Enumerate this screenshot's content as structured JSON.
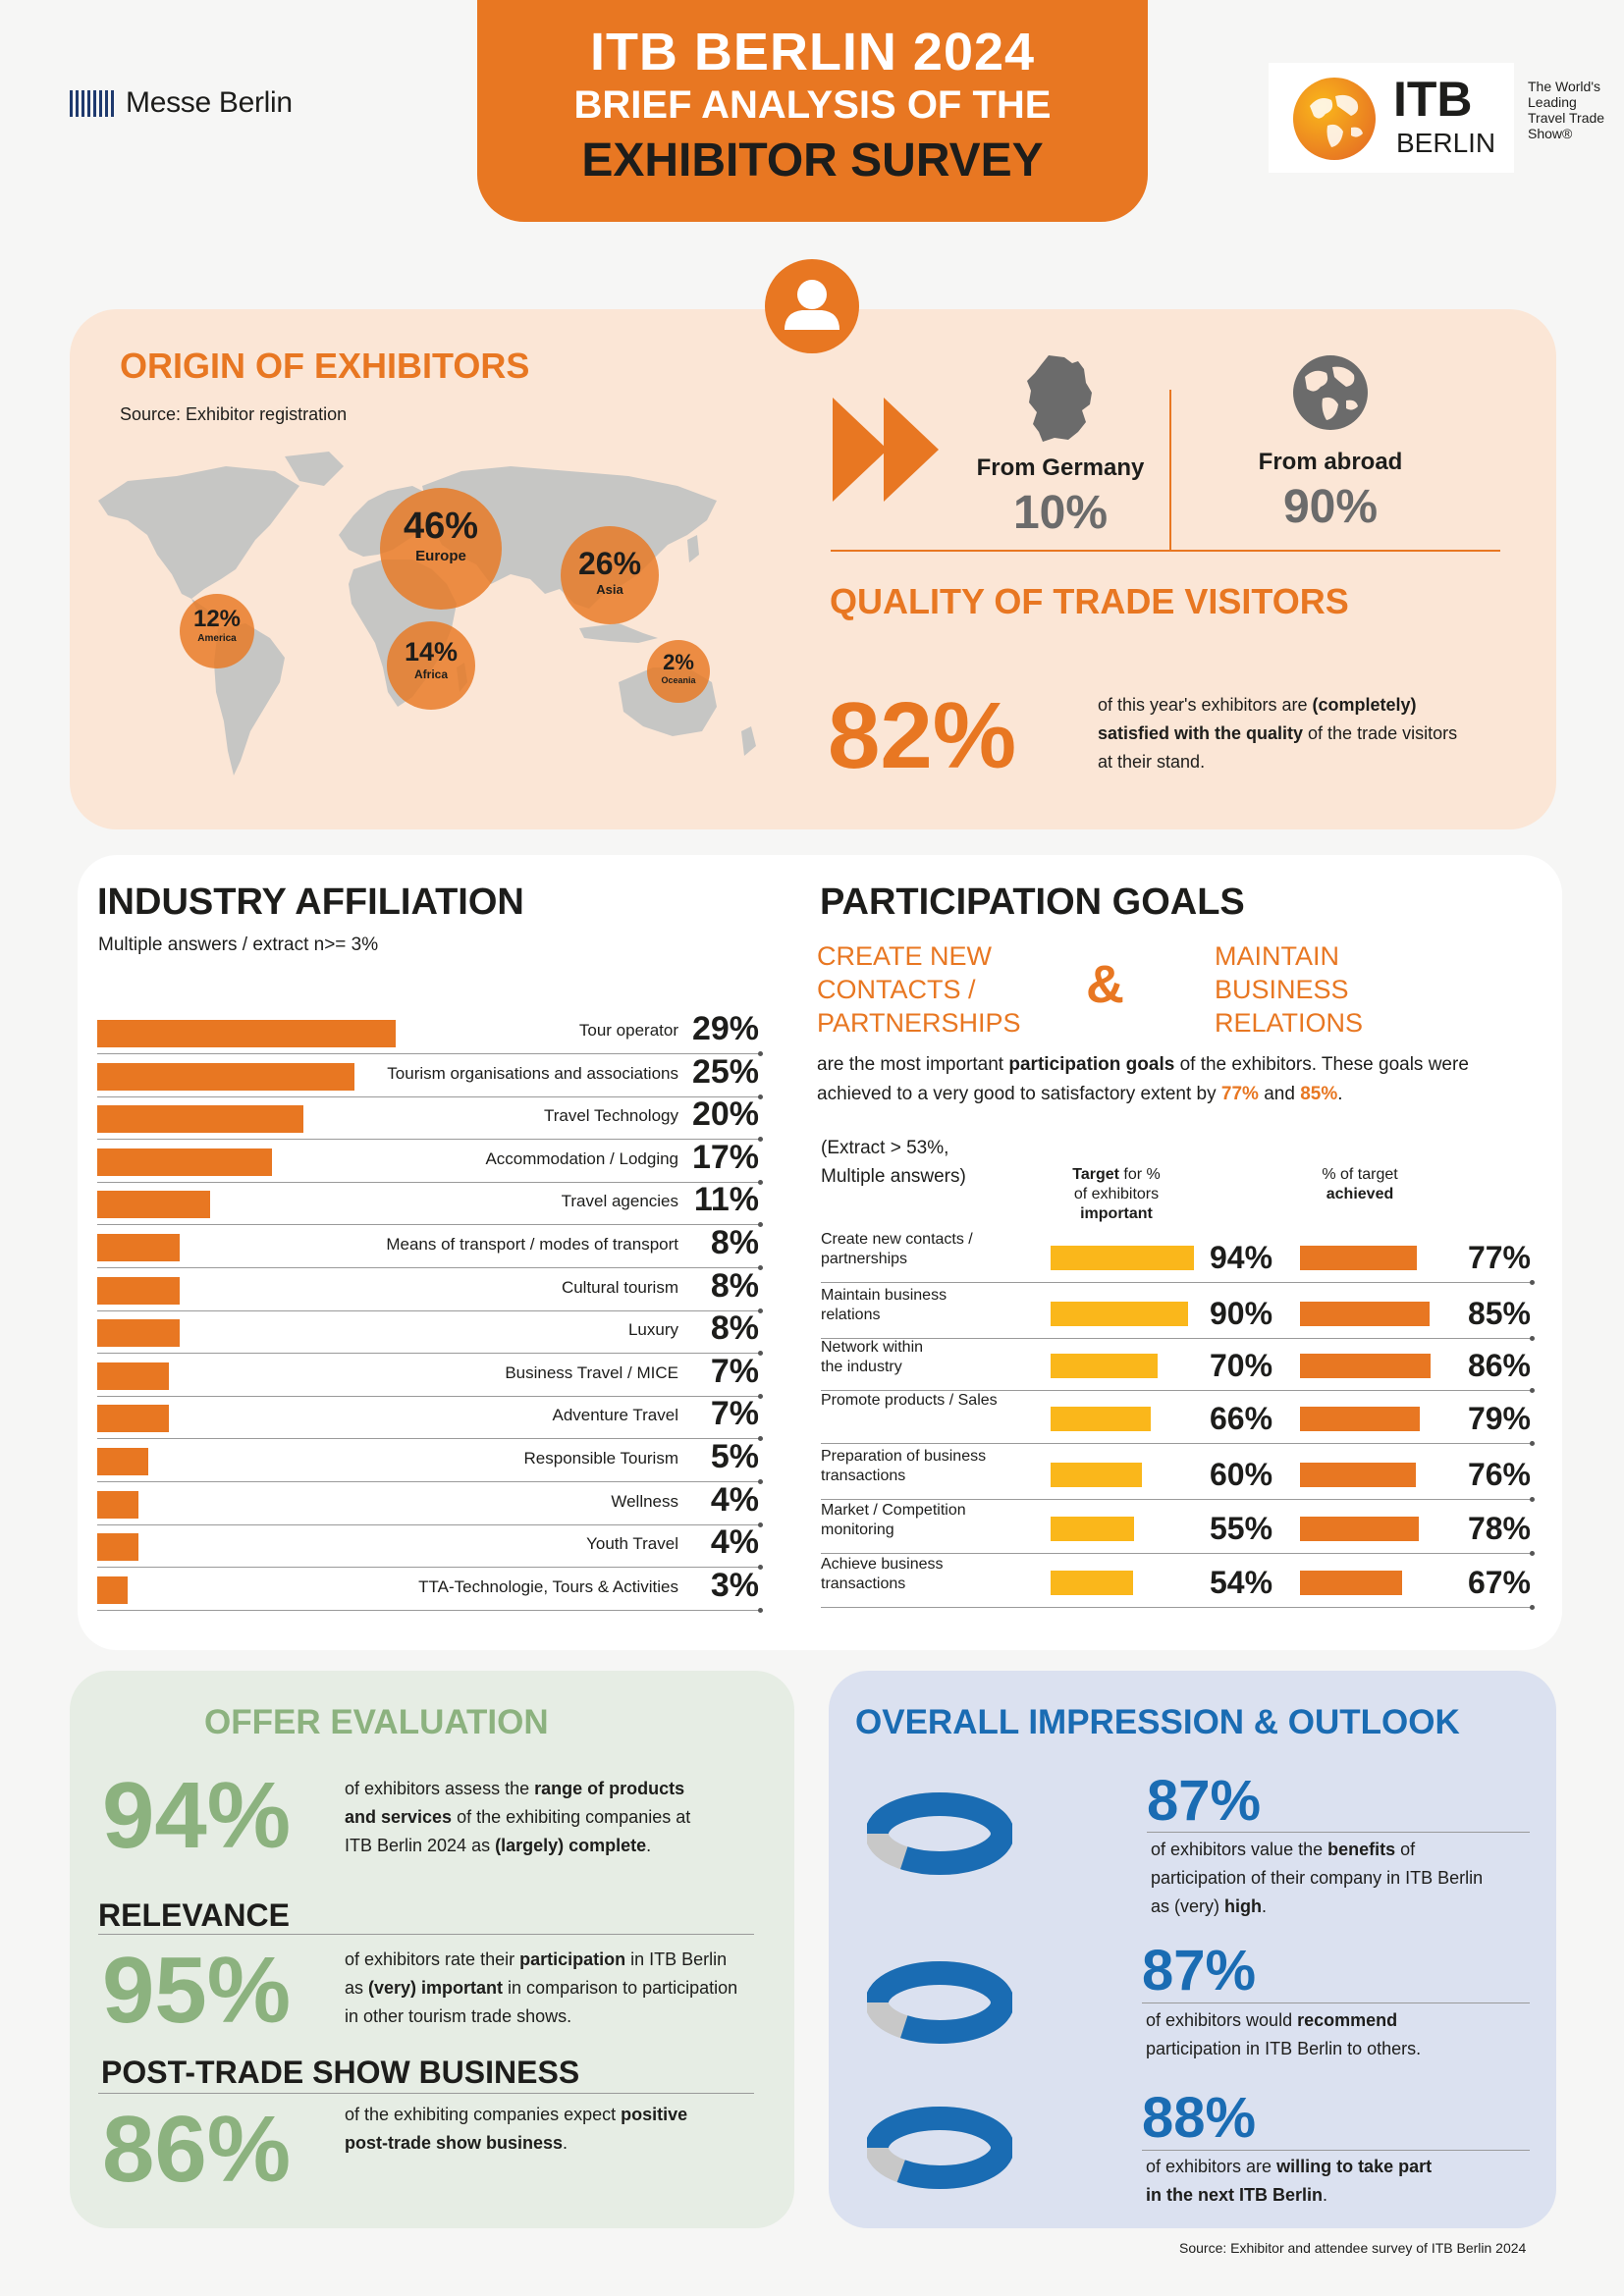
{
  "header": {
    "messe_logo_text": "Messe Berlin",
    "title_line1": "ITB BERLIN 2024",
    "title_line2": "BRIEF ANALYSIS OF THE",
    "title_line3": "EXHIBITOR SURVEY",
    "itb_logo_main": "ITB",
    "itb_logo_sub": "BERLIN",
    "tagline": [
      "The World's",
      "Leading",
      "Travel Trade",
      "Show®"
    ]
  },
  "origin": {
    "title": "ORIGIN OF EXHIBITORS",
    "source": "Source: Exhibitor registration",
    "regions": [
      {
        "pct": "46%",
        "name": "Europe"
      },
      {
        "pct": "26%",
        "name": "Asia"
      },
      {
        "pct": "12%",
        "name": "America"
      },
      {
        "pct": "14%",
        "name": "Africa"
      },
      {
        "pct": "2%",
        "name": "Oceania"
      }
    ],
    "germany_label": "From Germany",
    "germany_value": "10%",
    "abroad_label": "From abroad",
    "abroad_value": "90%"
  },
  "quality": {
    "title": "QUALITY OF TRADE VISITORS",
    "value": "82%",
    "text_1": "of this year's exhibitors are ",
    "text_bold_1": "(completely)",
    "text_bold_2": "satisfied with the quality",
    "text_2": " of the trade visitors",
    "text_3": "at their stand."
  },
  "industry": {
    "title": "INDUSTRY AFFILIATION",
    "subtitle": "Multiple answers / extract n>= 3%",
    "rows": [
      {
        "label": "Tour operator",
        "value": 29,
        "display": "29%"
      },
      {
        "label": "Tourism organisations and associations",
        "value": 25,
        "display": "25%"
      },
      {
        "label": "Travel Technology",
        "value": 20,
        "display": "20%"
      },
      {
        "label": "Accommodation / Lodging",
        "value": 17,
        "display": "17%"
      },
      {
        "label": "Travel agencies",
        "value": 11,
        "display": "11%"
      },
      {
        "label": "Means of transport / modes of transport",
        "value": 8,
        "display": "8%"
      },
      {
        "label": "Cultural tourism",
        "value": 8,
        "display": "8%"
      },
      {
        "label": "Luxury",
        "value": 8,
        "display": "8%"
      },
      {
        "label": "Business Travel / MICE",
        "value": 7,
        "display": "7%"
      },
      {
        "label": "Adventure Travel",
        "value": 7,
        "display": "7%"
      },
      {
        "label": "Responsible Tourism",
        "value": 5,
        "display": "5%"
      },
      {
        "label": "Wellness",
        "value": 4,
        "display": "4%"
      },
      {
        "label": "Youth Travel",
        "value": 4,
        "display": "4%"
      },
      {
        "label": "TTA-Technologie, Tours & Activities",
        "value": 3,
        "display": "3%"
      }
    ]
  },
  "goals": {
    "title": "PARTICIPATION GOALS",
    "goal_a": [
      "CREATE NEW",
      "CONTACTS /",
      "PARTNERSHIPS"
    ],
    "amp": "&",
    "goal_b": [
      "MAINTAIN",
      "BUSINESS",
      "RELATIONS"
    ],
    "text_1": "are the most important ",
    "text_bold": "participation goals",
    "text_2": " of the exhibitors. These goals were",
    "text_3": "achieved to a very good to satisfactory extent by ",
    "pct_a": "77%",
    "text_and": " and ",
    "pct_b": "85%",
    "text_end": ".",
    "note_1": "(Extract > 53%,",
    "note_2": "Multiple answers)",
    "col1_bold": "Target",
    "col1_rest": " for %",
    "col1_line2": "of exhibitors",
    "col1_line3": "important",
    "col2_line1": "% of target",
    "col2_line2": "achieved",
    "rows": [
      {
        "label": [
          "Create new contacts /",
          "partnerships"
        ],
        "target": 94,
        "target_display": "94%",
        "achieved": 77,
        "achieved_display": "77%"
      },
      {
        "label": [
          "Maintain business",
          "relations"
        ],
        "target": 90,
        "target_display": "90%",
        "achieved": 85,
        "achieved_display": "85%"
      },
      {
        "label": [
          "Network within",
          "the industry"
        ],
        "target": 70,
        "target_display": "70%",
        "achieved": 86,
        "achieved_display": "86%"
      },
      {
        "label": [
          "Promote products / Sales",
          ""
        ],
        "target": 66,
        "target_display": "66%",
        "achieved": 79,
        "achieved_display": "79%"
      },
      {
        "label": [
          "Preparation of business",
          "transactions"
        ],
        "target": 60,
        "target_display": "60%",
        "achieved": 76,
        "achieved_display": "76%"
      },
      {
        "label": [
          "Market / Competition",
          "monitoring"
        ],
        "target": 55,
        "target_display": "55%",
        "achieved": 78,
        "achieved_display": "78%"
      },
      {
        "label": [
          "Achieve business",
          "transactions"
        ],
        "target": 54,
        "target_display": "54%",
        "achieved": 67,
        "achieved_display": "67%"
      }
    ]
  },
  "offer": {
    "title": "OFFER EVALUATION",
    "value": "94%",
    "t1": "of exhibitors assess the ",
    "t1b": "range of products",
    "t2b": "and services",
    "t2": " of the exhibiting companies at",
    "t3": "ITB Berlin 2024 as ",
    "t3b": "(largely) complete",
    "t3e": ".",
    "relevance_title": "RELEVANCE",
    "relevance_value": "95%",
    "r1": "of exhibitors rate their ",
    "r1b": "participation",
    "r1e": " in ITB Berlin",
    "r2": "as ",
    "r2b": "(very) important",
    "r2e": " in comparison to participation",
    "r3": "in other tourism trade shows.",
    "post_title": "POST-TRADE SHOW BUSINESS",
    "post_value": "86%",
    "p1": "of the exhibiting companies expect ",
    "p1b": "positive",
    "p2b": "post-trade show business",
    "p2e": "."
  },
  "overall": {
    "title": "OVERALL IMPRESSION & OUTLOOK",
    "items": [
      {
        "value": "87%",
        "fraction": 0.87,
        "l1": "of exhibitors value the ",
        "l1b": "benefits",
        "l1e": " of",
        "l2": "participation of their company in ITB Berlin",
        "l3": "as (very) ",
        "l3b": "high",
        "l3e": "."
      },
      {
        "value": "87%",
        "fraction": 0.87,
        "l1": "of exhibitors would ",
        "l1b": "recommend",
        "l1e": "",
        "l2": "participation in ITB Berlin to others.",
        "l3": "",
        "l3b": "",
        "l3e": ""
      },
      {
        "value": "88%",
        "fraction": 0.88,
        "l1": "of exhibitors are ",
        "l1b": "willing to take part",
        "l1e": "",
        "l2": "",
        "l2b": "in the next ITB Berlin",
        "l2e": ".",
        "l3": "",
        "l3b": "",
        "l3e": ""
      }
    ]
  },
  "footer": {
    "source": "Source: Exhibitor and attendee survey of ITB Berlin 2024"
  },
  "colors": {
    "orange": "#e87722",
    "yellow": "#fab71b",
    "green": "#8cb27f",
    "blue": "#1a6cb3",
    "peach_bg": "#fbe6d6",
    "green_bg": "#e6ede4",
    "blue_bg": "#dbe1f0"
  }
}
